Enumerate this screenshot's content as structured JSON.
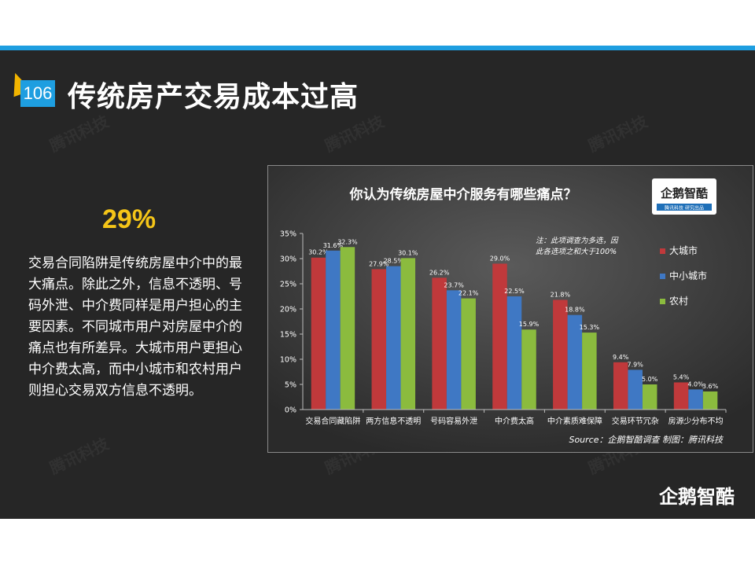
{
  "slide": {
    "page_number": "106",
    "title": "传统房产交易成本过高",
    "highlight": "29%",
    "body": "交易合同陷阱是传统房屋中介中的最大痛点。除此之外，信息不透明、号码外泄、中介费同样是用户担心的主要因素。不同城市用户对房屋中介的痛点也有所差异。大城市用户更担心中介费太高，而中小城市和农村用户则担心交易双方信息不透明。",
    "watermark": "腾讯科技",
    "bottom_logo": "企鹅智酷",
    "colors": {
      "accent_blue": "#1e9ee0",
      "highlight_yellow": "#f5c518",
      "background": "#262626"
    }
  },
  "chart_data": {
    "type": "bar",
    "title": "你认为传统房屋中介服务有哪些痛点？",
    "logo_text": "企鹅智酷",
    "logo_sub": "腾讯科技  研究出品",
    "note_line1": "注：此项调查为多选，因",
    "note_line2": "此各选项之和大于100%",
    "source": "Source：企鹅智酷调查   制图：腾讯科技",
    "categories": [
      "交易合同藏陷阱",
      "两方信息不透明",
      "号码容易外泄",
      "中介费太高",
      "中介素质难保障",
      "交易环节冗杂",
      "房源少分布不均"
    ],
    "series": [
      {
        "name": "大城市",
        "color": "#c0393b",
        "values": [
          30.2,
          27.9,
          26.2,
          29.0,
          21.8,
          9.4,
          5.4
        ],
        "labels": [
          "30.2%",
          "27.9%",
          "26.2%",
          "29.0%",
          "21.8%",
          "9.4%",
          "5.4%"
        ]
      },
      {
        "name": "中小城市",
        "color": "#3f78c4",
        "values": [
          31.6,
          28.5,
          23.7,
          22.5,
          18.8,
          7.9,
          4.0
        ],
        "labels": [
          "31.6%",
          "28.5%",
          "23.7%",
          "22.5%",
          "18.8%",
          "7.9%",
          "4.0%"
        ]
      },
      {
        "name": "农村",
        "color": "#8bbb3e",
        "values": [
          32.3,
          30.1,
          22.1,
          15.9,
          15.3,
          5.0,
          3.6
        ],
        "labels": [
          "32.3%",
          "30.1%",
          "22.1%",
          "15.9%",
          "15.3%",
          "5.0%",
          "3.6%"
        ]
      }
    ],
    "y_ticks": [
      "0%",
      "5%",
      "10%",
      "15%",
      "20%",
      "25%",
      "30%",
      "35%"
    ],
    "ylim": [
      0,
      35
    ],
    "grid": false,
    "legend_position": "right"
  }
}
